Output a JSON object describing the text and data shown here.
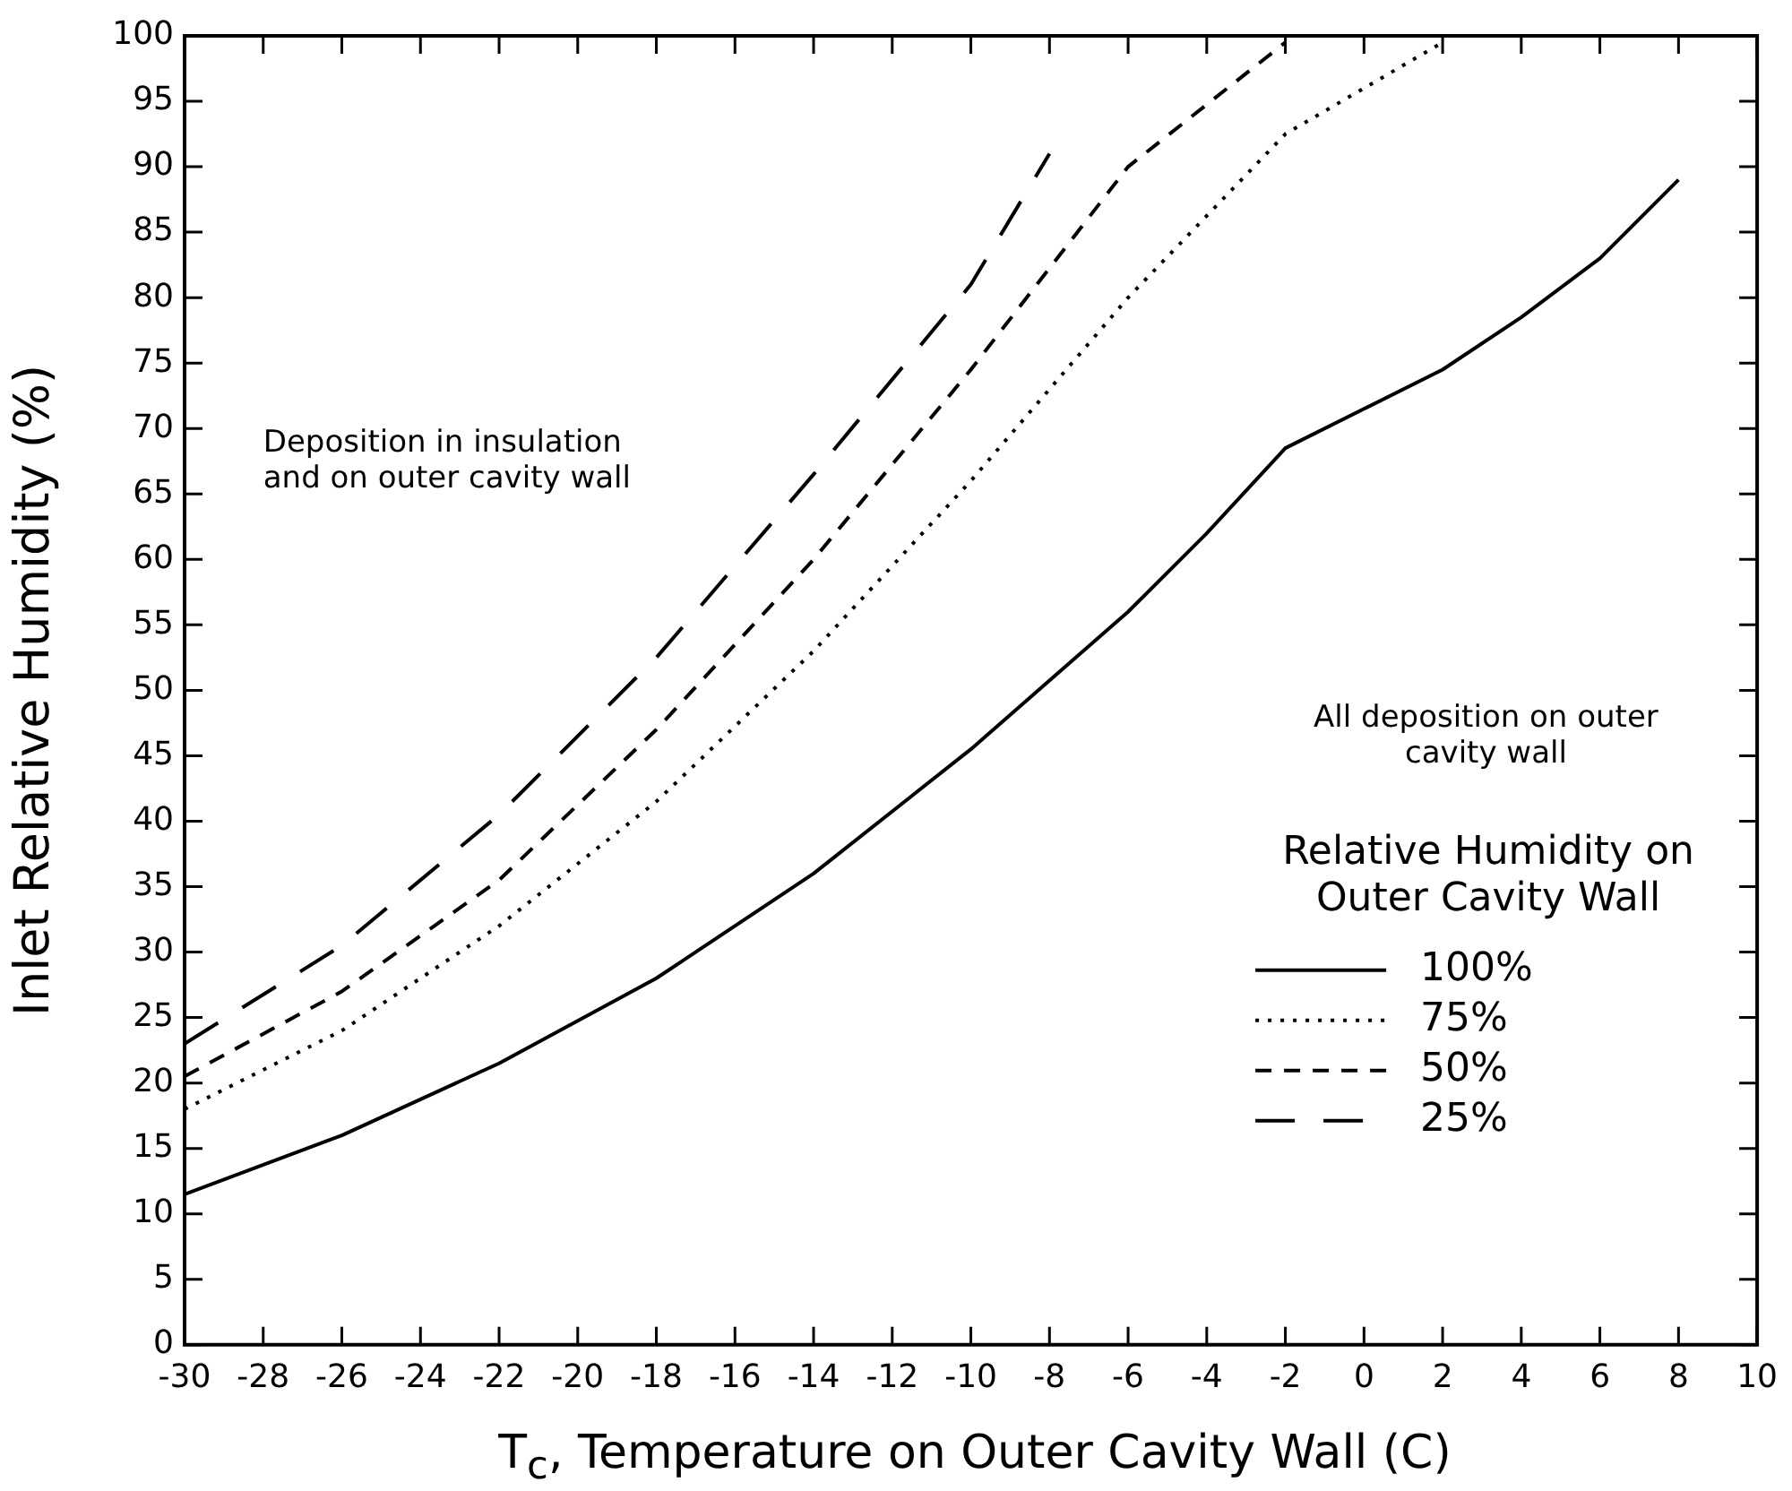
{
  "chart_data": {
    "type": "line",
    "xlabel": "T$_{c}$, Temperature on Outer Cavity Wall (C)",
    "ylabel": "Inlet Relative Humidity (%)",
    "legend_title": "Relative Humidity on Outer Cavity Wall",
    "legend": "bottom right",
    "grid": false,
    "marker": "none",
    "xlim": [
      -30,
      10
    ],
    "xticks": [
      -30,
      -28,
      -26,
      -24,
      -22,
      -20,
      -18,
      -16,
      -14,
      -12,
      -10,
      -8,
      -6,
      -4,
      -2,
      0,
      2,
      4,
      6,
      8,
      10
    ],
    "ylim": [
      0,
      100
    ],
    "yticks": [
      0,
      5,
      10,
      15,
      20,
      25,
      30,
      35,
      40,
      45,
      50,
      55,
      60,
      65,
      70,
      75,
      80,
      85,
      90,
      95,
      100
    ],
    "annotations": [
      "Deposition in insulation\nand on outer cavity wall",
      "All deposition on outer\ncavity wall"
    ],
    "series": [
      {
        "name": "100%",
        "color": "#000000",
        "line_style": "solid",
        "x": [
          -30,
          -26,
          -22,
          -18,
          -14,
          -10,
          -6,
          -4,
          -2,
          0,
          2,
          4,
          6,
          8
        ],
        "values": [
          11.5,
          16,
          21.5,
          28,
          36,
          45.5,
          56,
          62,
          68.5,
          71.5,
          74.5,
          78.5,
          83,
          89
        ]
      },
      {
        "name": "75%",
        "color": "#000000",
        "line_style": "dotted",
        "x": [
          -30,
          -26,
          -22,
          -18,
          -14,
          -10,
          -6,
          -2,
          2
        ],
        "values": [
          18,
          24,
          32,
          41.5,
          53,
          66,
          80,
          92.5,
          99.5
        ]
      },
      {
        "name": "50%",
        "color": "#000000",
        "line_style": "dashed",
        "x": [
          -30,
          -26,
          -22,
          -18,
          -14,
          -10,
          -6,
          -2
        ],
        "values": [
          20.5,
          27,
          35.5,
          47,
          60,
          74.5,
          90,
          99.5
        ]
      },
      {
        "name": "25%",
        "color": "#000000",
        "line_style": "longdash",
        "x": [
          -30,
          -26,
          -22,
          -18,
          -14,
          -10,
          -8
        ],
        "values": [
          23,
          30.5,
          40.5,
          52.5,
          66.5,
          81,
          91
        ]
      }
    ]
  }
}
